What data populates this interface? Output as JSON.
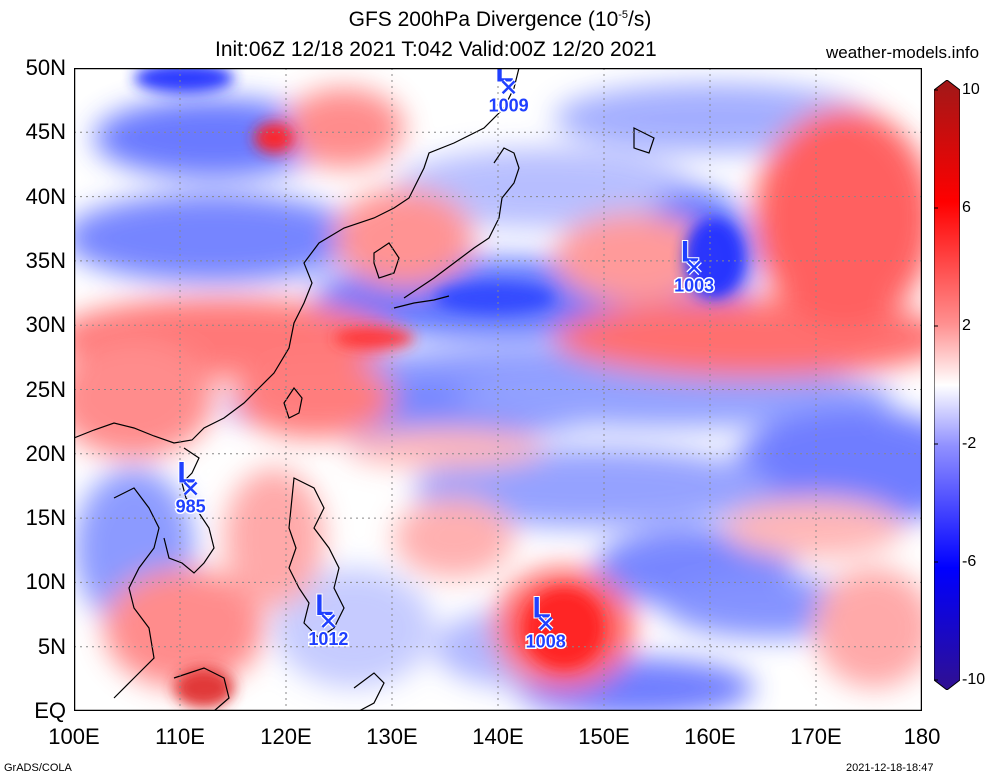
{
  "title": {
    "line1_prefix": "GFS 200hPa Divergence (10",
    "line1_exp": "-5",
    "line1_suffix": "/s)",
    "line2": "Init:06Z 12/18 2021 T:042 Valid:00Z 12/20 2021"
  },
  "site": "weather-models.info",
  "map": {
    "lon_range": [
      100,
      180
    ],
    "lat_range": [
      0,
      50
    ],
    "grid": "dotted",
    "x_labels": [
      {
        "lon": 100,
        "text": "100E"
      },
      {
        "lon": 110,
        "text": "110E"
      },
      {
        "lon": 120,
        "text": "120E"
      },
      {
        "lon": 130,
        "text": "130E"
      },
      {
        "lon": 140,
        "text": "140E"
      },
      {
        "lon": 150,
        "text": "150E"
      },
      {
        "lon": 160,
        "text": "160E"
      },
      {
        "lon": 170,
        "text": "170E"
      },
      {
        "lon": 180,
        "text": "180"
      }
    ],
    "y_labels": [
      {
        "lat": 50,
        "text": "50N"
      },
      {
        "lat": 45,
        "text": "45N"
      },
      {
        "lat": 40,
        "text": "40N"
      },
      {
        "lat": 35,
        "text": "35N"
      },
      {
        "lat": 30,
        "text": "30N"
      },
      {
        "lat": 25,
        "text": "25N"
      },
      {
        "lat": 20,
        "text": "20N"
      },
      {
        "lat": 15,
        "text": "15N"
      },
      {
        "lat": 10,
        "text": "10N"
      },
      {
        "lat": 5,
        "text": "5N"
      },
      {
        "lat": 0,
        "text": "EQ"
      }
    ],
    "lows": [
      {
        "letter": "L",
        "pressure": "1009",
        "lon": 141,
        "lat": 48.5
      },
      {
        "letter": "L",
        "pressure": "1003",
        "lon": 158.5,
        "lat": 34.5
      },
      {
        "letter": "L",
        "pressure": "985",
        "lon": 111,
        "lat": 17.3
      },
      {
        "letter": "L",
        "pressure": "1012",
        "lon": 124,
        "lat": 7
      },
      {
        "letter": "L",
        "pressure": "1008",
        "lon": 144.5,
        "lat": 6.8
      }
    ],
    "low_color": "#2040ff"
  },
  "colorbar": {
    "labels": [
      "10",
      "6",
      "2",
      "-2",
      "-6",
      "-10"
    ],
    "values": [
      10,
      6,
      2,
      -2,
      -6,
      -10
    ],
    "colors_top_to_bottom": [
      "#a01818",
      "#ff0000",
      "#ff9090",
      "#ffffff",
      "#9090ff",
      "#0000ff",
      "#301090"
    ]
  },
  "footer": {
    "left": "GrADS/COLA",
    "right": "2021-12-18-18:47"
  }
}
